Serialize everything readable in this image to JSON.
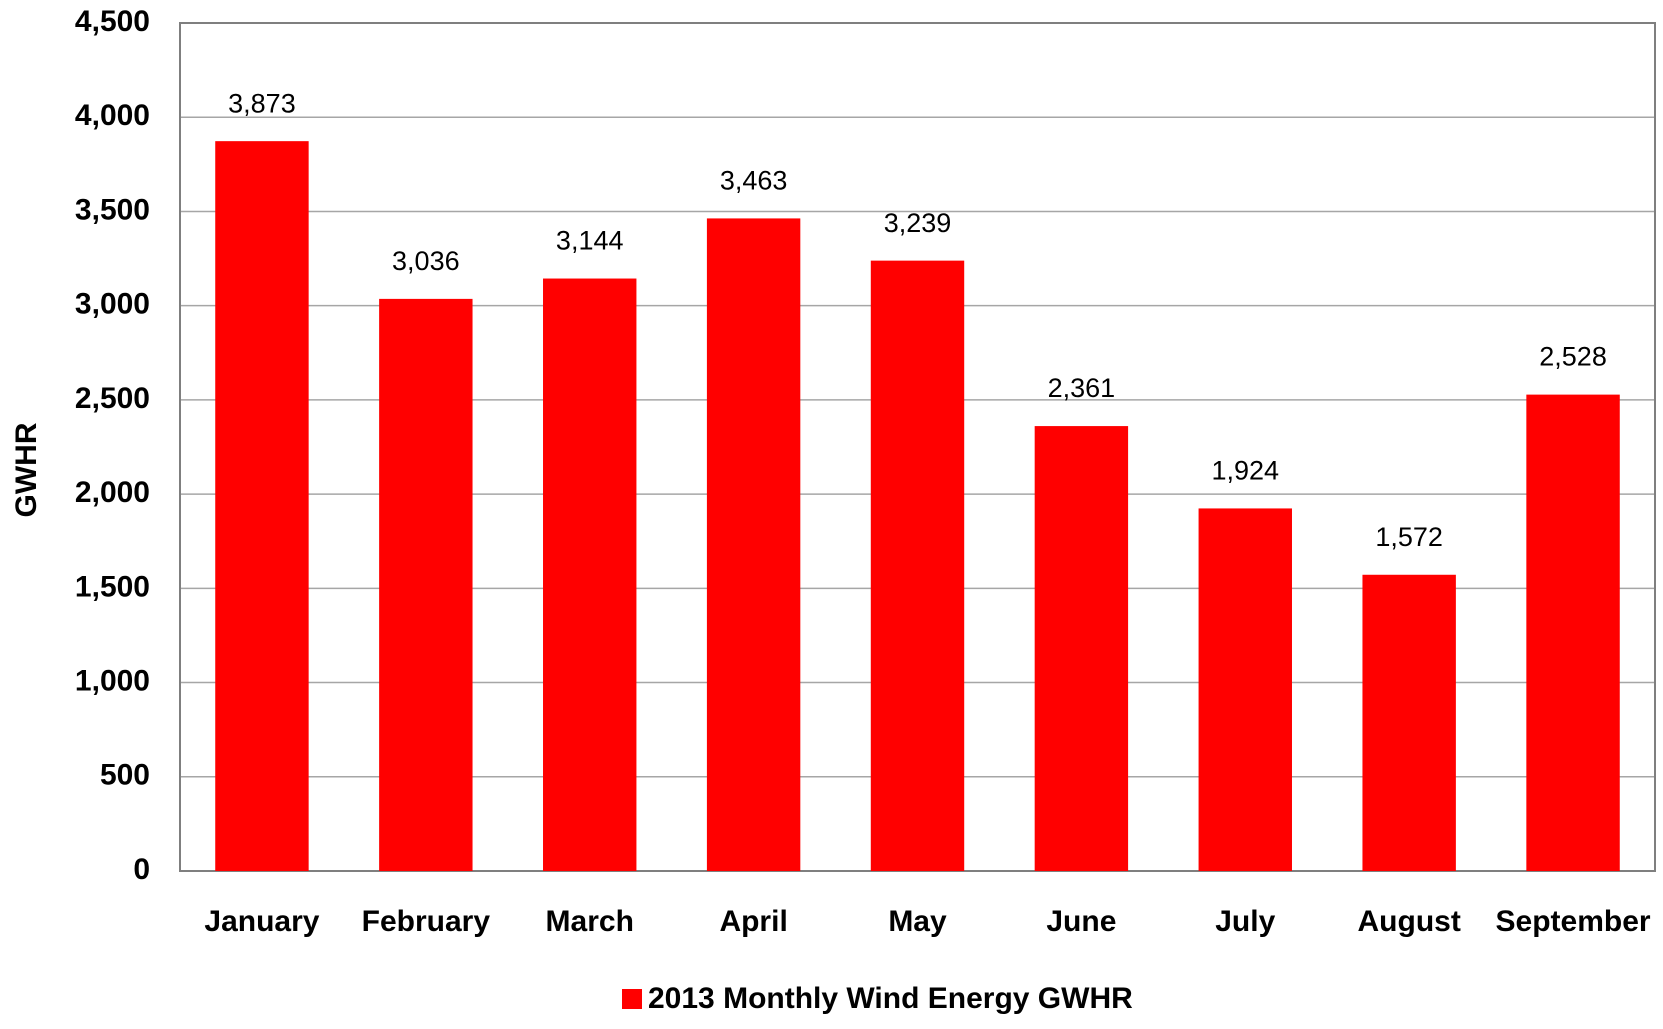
{
  "chart_data": {
    "type": "bar",
    "y_label": "GWHR",
    "categories": [
      "January",
      "February",
      "March",
      "April",
      "May",
      "June",
      "July",
      "August",
      "September"
    ],
    "series": [
      {
        "name": "2013 Monthly Wind Energy GWHR",
        "color": "#ff0000",
        "values": [
          3873,
          3036,
          3144,
          3463,
          3239,
          2361,
          1924,
          1572,
          2528
        ],
        "value_labels": [
          "3,873",
          "3,036",
          "3,144",
          "3,463",
          "3,239",
          "2,361",
          "1,924",
          "1,572",
          "2,528"
        ]
      }
    ],
    "ylim": [
      0,
      4500
    ],
    "yticks": [
      0,
      500,
      {
        "value": 1000,
        "label": "1,000"
      },
      {
        "value": 1500,
        "label": "1,500"
      },
      {
        "value": 2000,
        "label": "2,000"
      },
      {
        "value": 2500,
        "label": "2,500"
      },
      {
        "value": 3000,
        "label": "3,000"
      },
      {
        "value": 3500,
        "label": "3,500"
      },
      {
        "value": 4000,
        "label": "4,000"
      },
      {
        "value": 4500,
        "label": "4,500"
      }
    ],
    "grid": true,
    "legend": "bottom"
  }
}
